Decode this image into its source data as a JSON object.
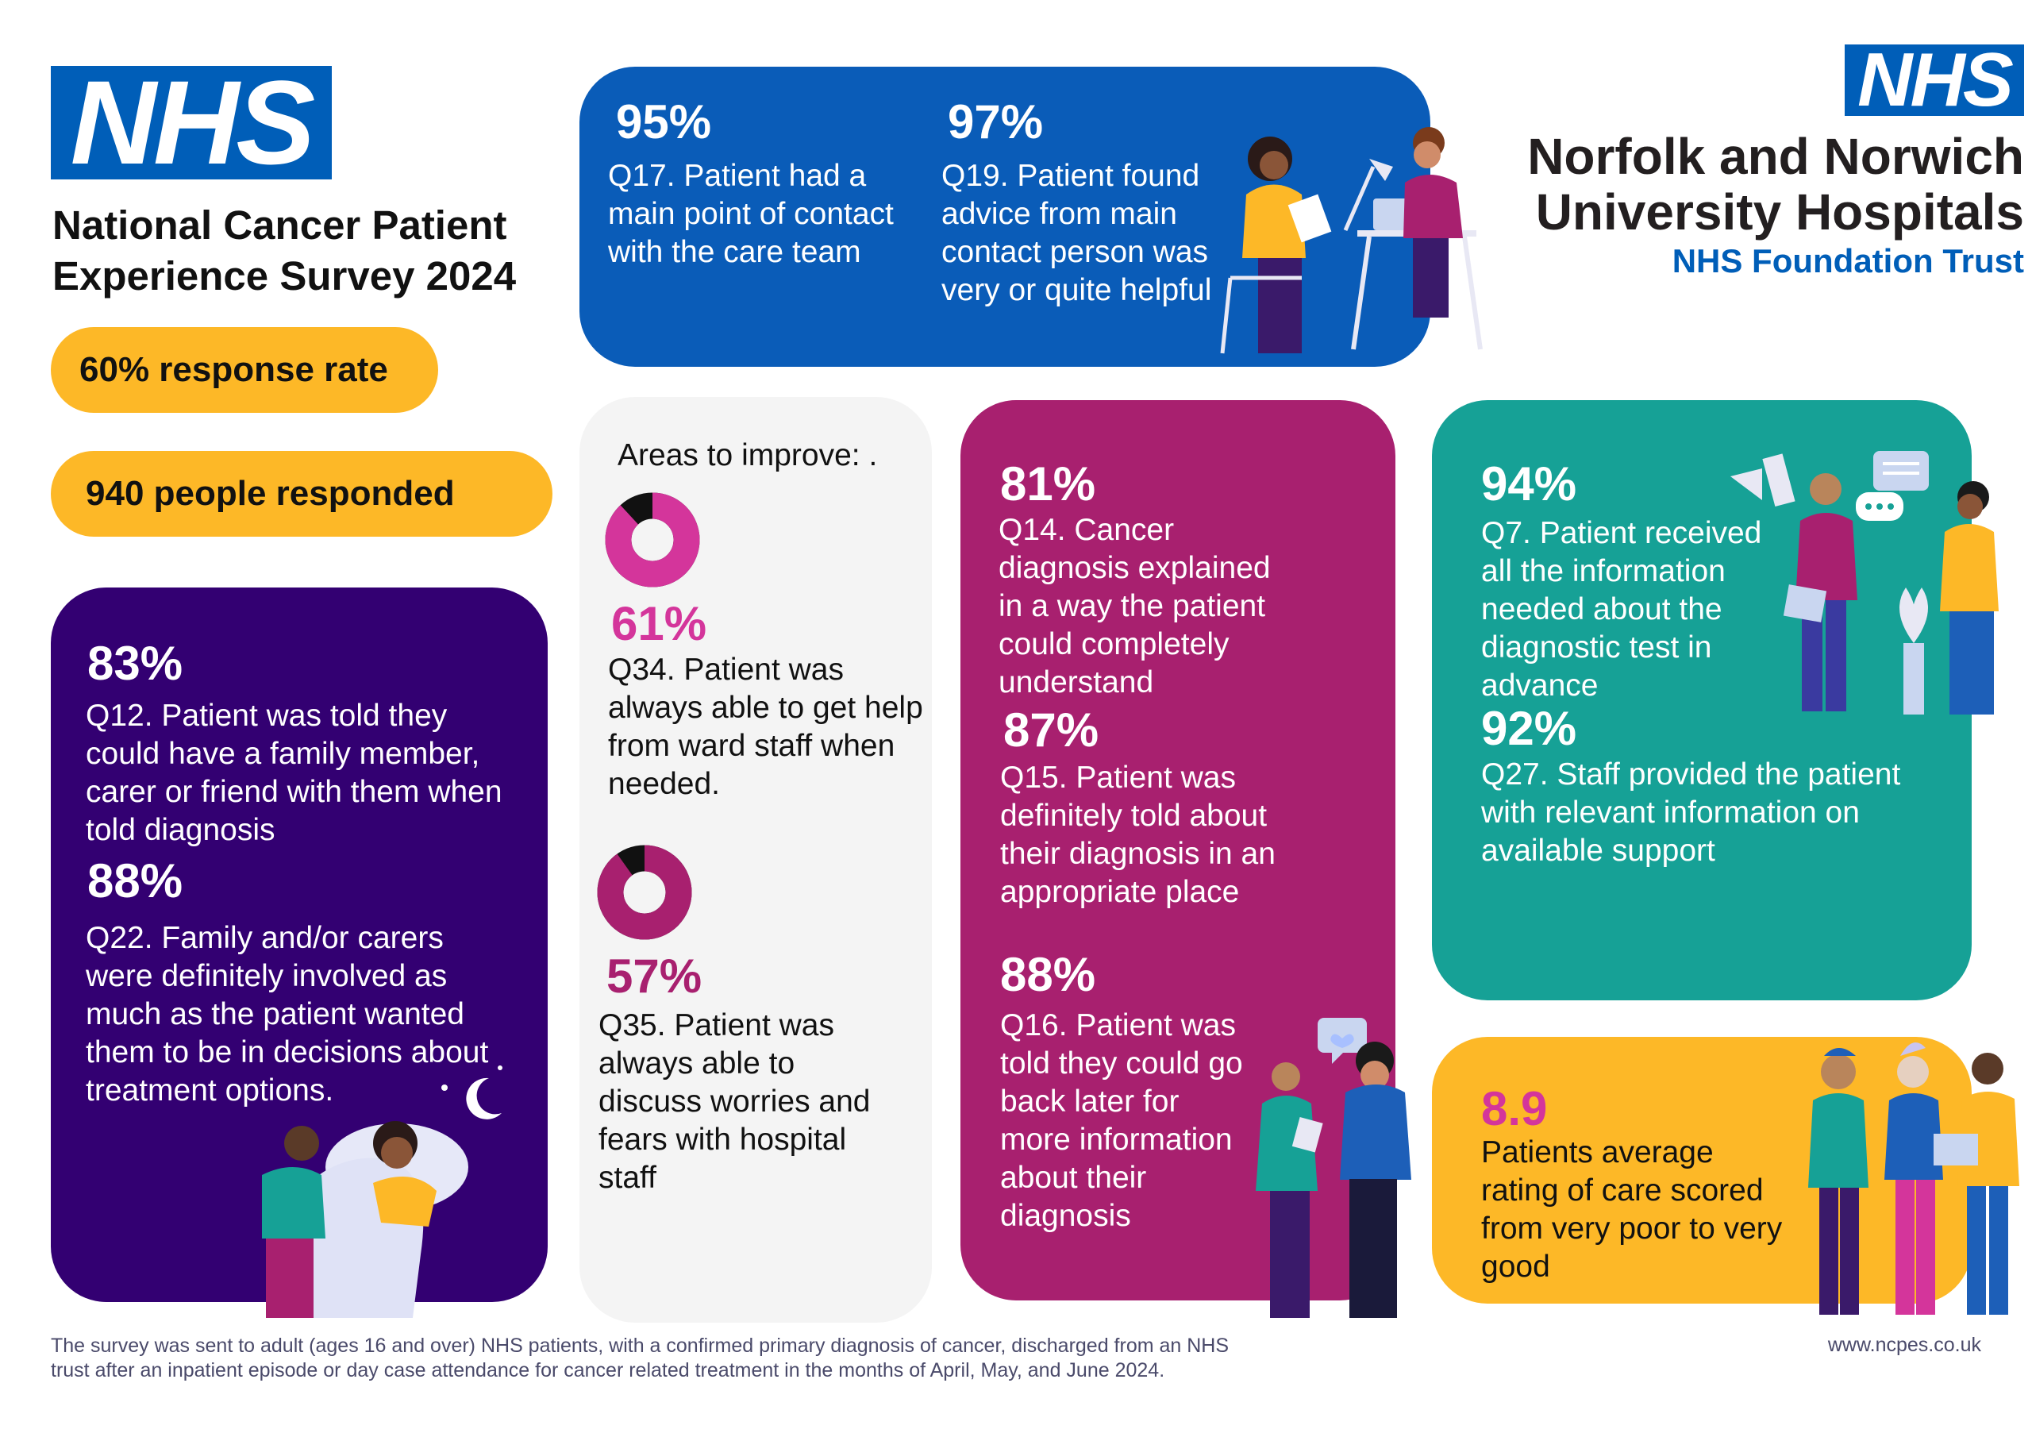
{
  "colors": {
    "nhs_blue": "#005eb8",
    "blue_panel": "#0a5cb8",
    "purple_panel": "#330072",
    "magenta_panel": "#a8206f",
    "teal_panel": "#16a196",
    "yellow": "#fdb827",
    "grey_panel": "#f4f4f4",
    "donut_magenta": "#d4359b",
    "donut_dark": "#a8206f"
  },
  "header": {
    "logo": "NHS",
    "title_line1": "National Cancer Patient",
    "title_line2": "Experience Survey 2024"
  },
  "stats": {
    "response_rate": "60% response rate",
    "responded": "940 people responded"
  },
  "trust": {
    "logo": "NHS",
    "line1": "Norfolk and Norwich",
    "line2": "University Hospitals",
    "line3": "NHS Foundation Trust"
  },
  "blue_panel": {
    "q17_pct": "95%",
    "q17_line1": "Q17. Patient had a",
    "q17_line2": "main point of contact",
    "q17_line3": "with the care team",
    "q19_pct": "97%",
    "q19_line1": "Q19. Patient found",
    "q19_line2": "advice from main",
    "q19_line3": "contact person was",
    "q19_line4": "very or quite helpful"
  },
  "purple_panel": {
    "q12_pct": "83%",
    "q12_line1": "Q12. Patient was told they",
    "q12_line2": "could have a family member,",
    "q12_line3": "carer or friend with them when",
    "q12_line4": "told diagnosis",
    "q22_pct": "88%",
    "q22_line1": "Q22. Family and/or carers",
    "q22_line2": "were definitely involved as",
    "q22_line3": "much as the patient wanted",
    "q22_line4": "them to be in decisions about",
    "q22_line5": "treatment options."
  },
  "improve_panel": {
    "heading": "Areas to improve: .",
    "q34_pct": "61%",
    "q34_value": 61,
    "q34_line1": "Q34. Patient was",
    "q34_line2": "always able to get help",
    "q34_line3": "from ward staff when",
    "q34_line4": "needed.",
    "q35_pct": "57%",
    "q35_value": 57,
    "q35_line1": "Q35. Patient was",
    "q35_line2": "always able to",
    "q35_line3": "discuss worries and",
    "q35_line4": "fears with hospital",
    "q35_line5": "staff"
  },
  "magenta_panel": {
    "q14_pct": "81%",
    "q14_line1": "Q14. Cancer",
    "q14_line2": "diagnosis explained",
    "q14_line3": "in a way the patient",
    "q14_line4": "could completely",
    "q14_line5": "understand",
    "q15_pct": "87%",
    "q15_line1": "Q15. Patient was",
    "q15_line2": "definitely told about",
    "q15_line3": "their diagnosis in an",
    "q15_line4": "appropriate place",
    "q16_pct": "88%",
    "q16_line1": "Q16. Patient was",
    "q16_line2": "told they could go",
    "q16_line3": "back later for",
    "q16_line4": "more information",
    "q16_line5": "about their",
    "q16_line6": "diagnosis"
  },
  "teal_panel": {
    "q7_pct": "94%",
    "q7_line1": "Q7. Patient received",
    "q7_line2": "all the information",
    "q7_line3": "needed about the",
    "q7_line4": "diagnostic test in",
    "q7_line5": "advance",
    "q27_pct": "92%",
    "q27_line1": "Q27. Staff provided the patient",
    "q27_line2": "with relevant information on",
    "q27_line3": "available support"
  },
  "rating_panel": {
    "score": "8.9",
    "line1": "Patients average",
    "line2": "rating of care scored",
    "line3": "from very poor to very",
    "line4": "good"
  },
  "footer": {
    "note_line1": "The survey was sent to adult (ages 16 and over) NHS patients, with a confirmed primary diagnosis of cancer, discharged from an NHS",
    "note_line2": "trust after an inpatient episode or day case attendance for cancer related treatment in the months of April, May, and June 2024.",
    "website": "www.ncpes.co.uk"
  }
}
